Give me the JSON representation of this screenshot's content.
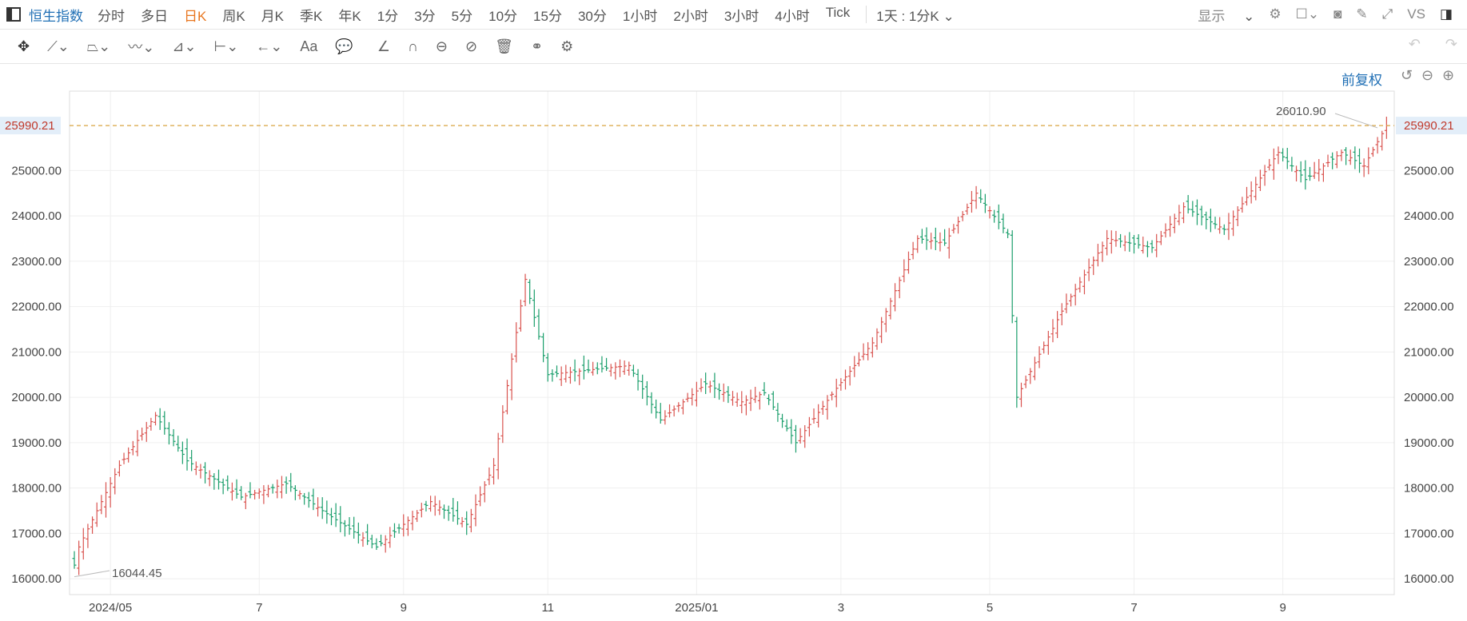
{
  "topbar": {
    "title": "恒生指数",
    "periods": [
      "分时",
      "多日",
      "日K",
      "周K",
      "月K",
      "季K",
      "年K",
      "1分",
      "3分",
      "5分",
      "10分",
      "15分",
      "30分",
      "1小时",
      "2小时",
      "3小时",
      "4小时",
      "Tick"
    ],
    "active_period": "日K",
    "interval_select": "1天 : 1分K",
    "display_label": "显示",
    "vs_label": "VS"
  },
  "toolbar": {
    "text_tool_label": "Aa"
  },
  "chart_header": {
    "adjust_label": "前复权"
  },
  "colors": {
    "up": "#d9534f",
    "down": "#1a9e6b",
    "accent": "#1f6fb5",
    "last_price": "#c0392b"
  },
  "chart_data": {
    "type": "ohlc",
    "ylim": [
      15650,
      26750
    ],
    "y_ticks": [
      16000,
      17000,
      18000,
      19000,
      20000,
      21000,
      22000,
      23000,
      24000,
      25000
    ],
    "y_tick_labels": [
      "16000.00",
      "17000.00",
      "18000.00",
      "19000.00",
      "20000.00",
      "21000.00",
      "22000.00",
      "23000.00",
      "24000.00",
      "25000.00"
    ],
    "x_labels": [
      "2024/05",
      "7",
      "9",
      "11",
      "2025/01",
      "3",
      "5",
      "7",
      "9"
    ],
    "last_price": 25990.21,
    "last_price_label": "25990.21",
    "max_annotation": {
      "value": 26010.9,
      "label": "26010.90"
    },
    "min_annotation": {
      "value": 16044.45,
      "label": "16044.45"
    },
    "segments": [
      {
        "from": 16300,
        "to": 18500,
        "days": 11
      },
      {
        "from": 18500,
        "to": 19600,
        "days": 8
      },
      {
        "from": 19600,
        "to": 18600,
        "days": 7
      },
      {
        "from": 18600,
        "to": 17800,
        "days": 12
      },
      {
        "from": 17800,
        "to": 18100,
        "days": 10
      },
      {
        "from": 18100,
        "to": 17500,
        "days": 8
      },
      {
        "from": 17500,
        "to": 16700,
        "days": 12
      },
      {
        "from": 16700,
        "to": 17700,
        "days": 12
      },
      {
        "from": 17700,
        "to": 17200,
        "days": 8
      },
      {
        "from": 17200,
        "to": 18500,
        "days": 6
      },
      {
        "from": 18500,
        "to": 22600,
        "days": 7
      },
      {
        "from": 22600,
        "to": 20500,
        "days": 5
      },
      {
        "from": 20500,
        "to": 20700,
        "days": 18
      },
      {
        "from": 20700,
        "to": 19500,
        "days": 7
      },
      {
        "from": 19500,
        "to": 20300,
        "days": 10
      },
      {
        "from": 20300,
        "to": 19900,
        "days": 8
      },
      {
        "from": 19900,
        "to": 20100,
        "days": 5
      },
      {
        "from": 20100,
        "to": 19000,
        "days": 7
      },
      {
        "from": 19000,
        "to": 20200,
        "days": 9
      },
      {
        "from": 20200,
        "to": 21200,
        "days": 8
      },
      {
        "from": 21200,
        "to": 23500,
        "days": 10
      },
      {
        "from": 23500,
        "to": 23400,
        "days": 6
      },
      {
        "from": 23400,
        "to": 24500,
        "days": 7
      },
      {
        "from": 24500,
        "to": 23600,
        "days": 7
      },
      {
        "from": 23600,
        "to": 20000,
        "days": 2
      },
      {
        "from": 20000,
        "to": 21900,
        "days": 10
      },
      {
        "from": 21900,
        "to": 23500,
        "days": 10
      },
      {
        "from": 23500,
        "to": 23300,
        "days": 10
      },
      {
        "from": 23300,
        "to": 24200,
        "days": 7
      },
      {
        "from": 24200,
        "to": 23700,
        "days": 9
      },
      {
        "from": 23700,
        "to": 25400,
        "days": 12
      },
      {
        "from": 25400,
        "to": 24800,
        "days": 6
      },
      {
        "from": 24800,
        "to": 25400,
        "days": 8
      },
      {
        "from": 25400,
        "to": 25100,
        "days": 5
      },
      {
        "from": 25100,
        "to": 25990,
        "days": 5
      }
    ]
  }
}
